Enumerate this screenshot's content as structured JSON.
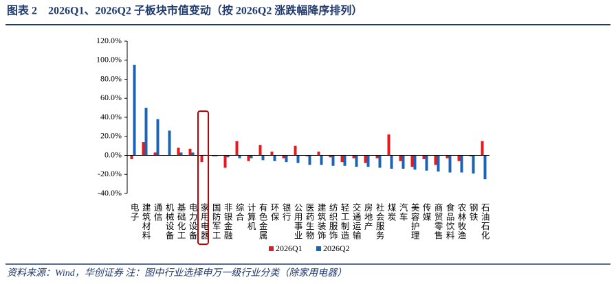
{
  "chart_data": {
    "type": "bar",
    "title": "图表 2　2026Q1、2026Q2 子板块市值变动（按 2026Q2 涨跌幅降序排列）",
    "source": "资料来源：Wind，华创证券 注：图中行业选择申万一级行业分类（除家用电器）",
    "categories": [
      "电子",
      "建筑材料",
      "通信",
      "机械设备",
      "基础化工",
      "电力设备",
      "家用电器",
      "国防军工",
      "非银金融",
      "综合",
      "计算机",
      "有色金属",
      "环保",
      "银行",
      "公用事业",
      "医药生物",
      "建筑装饰",
      "纺织服饰",
      "轻工制造",
      "交通运输",
      "房地产",
      "社会服务",
      "煤炭",
      "汽车",
      "美容护理",
      "传媒",
      "商贸零售",
      "食品饮料",
      "农林牧渔",
      "钢铁",
      "石油石化"
    ],
    "series": [
      {
        "name": "2026Q1",
        "color": "#e8191e",
        "values": [
          -4,
          14,
          3,
          0,
          8,
          7,
          -7,
          -1,
          -13,
          15,
          -6,
          11,
          4,
          -3,
          10,
          -1,
          4,
          -2,
          -7,
          -3,
          -8,
          -3,
          22,
          -6,
          -12,
          -4,
          -10,
          -3,
          -6,
          -1,
          15
        ]
      },
      {
        "name": "2026Q2",
        "color": "#1a63b5",
        "values": [
          95,
          50,
          38,
          26,
          3,
          3,
          0.5,
          -1,
          -2,
          -3,
          -3,
          -5,
          -6,
          -7,
          -8,
          -10,
          -10,
          -11,
          -11,
          -12,
          -12,
          -13,
          -14,
          -14,
          -15,
          -16,
          -17,
          -18,
          -18,
          -19,
          -25
        ]
      }
    ],
    "ylim": [
      -40,
      120
    ],
    "yticks": [
      {
        "value": -40,
        "label": "-40.0%"
      },
      {
        "value": -20,
        "label": "-20.0%"
      },
      {
        "value": 0,
        "label": "0.0%"
      },
      {
        "value": 20,
        "label": "20.0%"
      },
      {
        "value": 40,
        "label": "40.0%"
      },
      {
        "value": 60,
        "label": "60.0%"
      },
      {
        "value": 80,
        "label": "80.0%"
      },
      {
        "value": 100,
        "label": "100.0%"
      },
      {
        "value": 120,
        "label": "120.0%"
      }
    ],
    "grid": false
  }
}
